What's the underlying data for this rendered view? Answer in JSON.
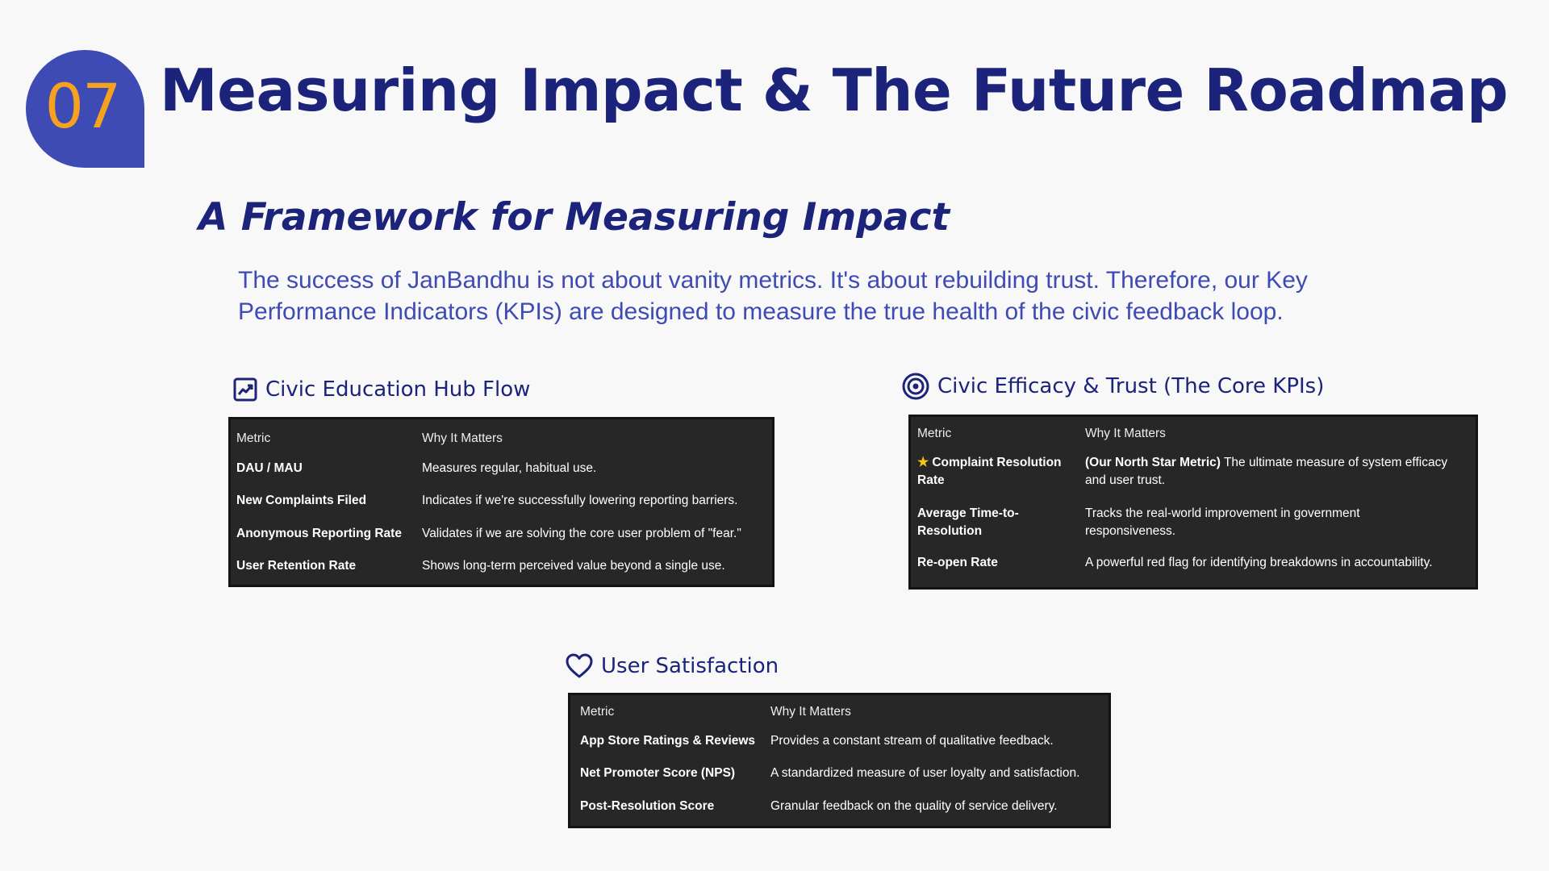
{
  "badge": {
    "number": "07"
  },
  "title": "Measuring Impact & The Future Roadmap",
  "subtitle": "A Framework for Measuring Impact",
  "intro": "The success of JanBandhu is not about vanity metrics. It's about rebuilding trust. Therefore, our Key Performance Indicators (KPIs) are designed to measure the true health of the civic feedback loop.",
  "sections": [
    {
      "heading": "Civic Education Hub Flow",
      "icon": "trending-up-chart-icon",
      "columns": [
        "Metric",
        "Why It Matters"
      ],
      "rows": [
        {
          "metric": "DAU / MAU",
          "why": "Measures regular, habitual use."
        },
        {
          "metric": "New Complaints Filed",
          "why": "Indicates if we're successfully lowering reporting barriers."
        },
        {
          "metric": "Anonymous Reporting Rate",
          "why": "Validates if we are solving the core user problem of \"fear.\""
        },
        {
          "metric": "User Retention Rate",
          "why": "Shows long-term perceived value beyond a single use."
        }
      ]
    },
    {
      "heading": "Civic Efficacy & Trust (The Core KPIs)",
      "icon": "target-icon",
      "columns": [
        "Metric",
        "Why It Matters"
      ],
      "rows": [
        {
          "metric": "Complaint Resolution Rate",
          "metric_icon": "star-icon",
          "why_bold": "(Our North Star Metric)",
          "why": " The ultimate measure of system efficacy and user trust."
        },
        {
          "metric": "Average Time-to-Resolution",
          "why": "Tracks the real-world improvement in government responsiveness."
        },
        {
          "metric": "Re-open Rate",
          "why": "A powerful red flag for identifying breakdowns in accountability."
        }
      ]
    },
    {
      "heading": "User Satisfaction",
      "icon": "heart-icon",
      "columns": [
        "Metric",
        "Why It Matters"
      ],
      "rows": [
        {
          "metric": "App Store Ratings & Reviews",
          "why": "Provides a constant stream of qualitative feedback."
        },
        {
          "metric": "Net Promoter Score (NPS)",
          "why": "A standardized measure of user loyalty and satisfaction."
        },
        {
          "metric": "Post-Resolution Score",
          "why": "Granular feedback on the quality of service delivery."
        }
      ]
    }
  ]
}
